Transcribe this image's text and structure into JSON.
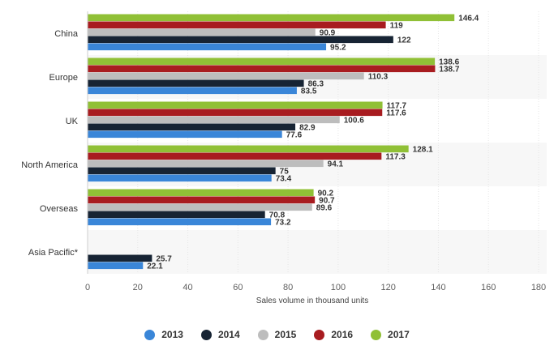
{
  "chart_data": {
    "type": "bar",
    "orientation": "horizontal",
    "title": "",
    "xlabel": "Sales volume in thousand units",
    "ylabel": "",
    "xlim": [
      0,
      180
    ],
    "ticks": [
      0,
      20,
      40,
      60,
      80,
      100,
      120,
      140,
      160,
      180
    ],
    "grid": true,
    "legend_position": "bottom",
    "categories": [
      "China",
      "Europe",
      "UK",
      "North America",
      "Overseas",
      "Asia Pacific*"
    ],
    "series": [
      {
        "name": "2017",
        "color": "#90c036",
        "values": [
          146.4,
          138.6,
          117.7,
          128.1,
          90.2,
          null
        ]
      },
      {
        "name": "2016",
        "color": "#a81c20",
        "values": [
          119,
          138.7,
          117.6,
          117.3,
          90.7,
          null
        ]
      },
      {
        "name": "2015",
        "color": "#bdbdbd",
        "values": [
          90.9,
          110.3,
          100.6,
          94.1,
          89.6,
          null
        ]
      },
      {
        "name": "2014",
        "color": "#172434",
        "values": [
          122,
          86.3,
          82.9,
          75,
          70.8,
          25.7
        ]
      },
      {
        "name": "2013",
        "color": "#3a86d8",
        "values": [
          95.2,
          83.5,
          77.6,
          73.4,
          73.2,
          22.1
        ]
      }
    ],
    "legend": [
      {
        "name": "2013",
        "color": "#3a86d8"
      },
      {
        "name": "2014",
        "color": "#172434"
      },
      {
        "name": "2015",
        "color": "#bdbdbd"
      },
      {
        "name": "2016",
        "color": "#a81c20"
      },
      {
        "name": "2017",
        "color": "#90c036"
      }
    ]
  }
}
